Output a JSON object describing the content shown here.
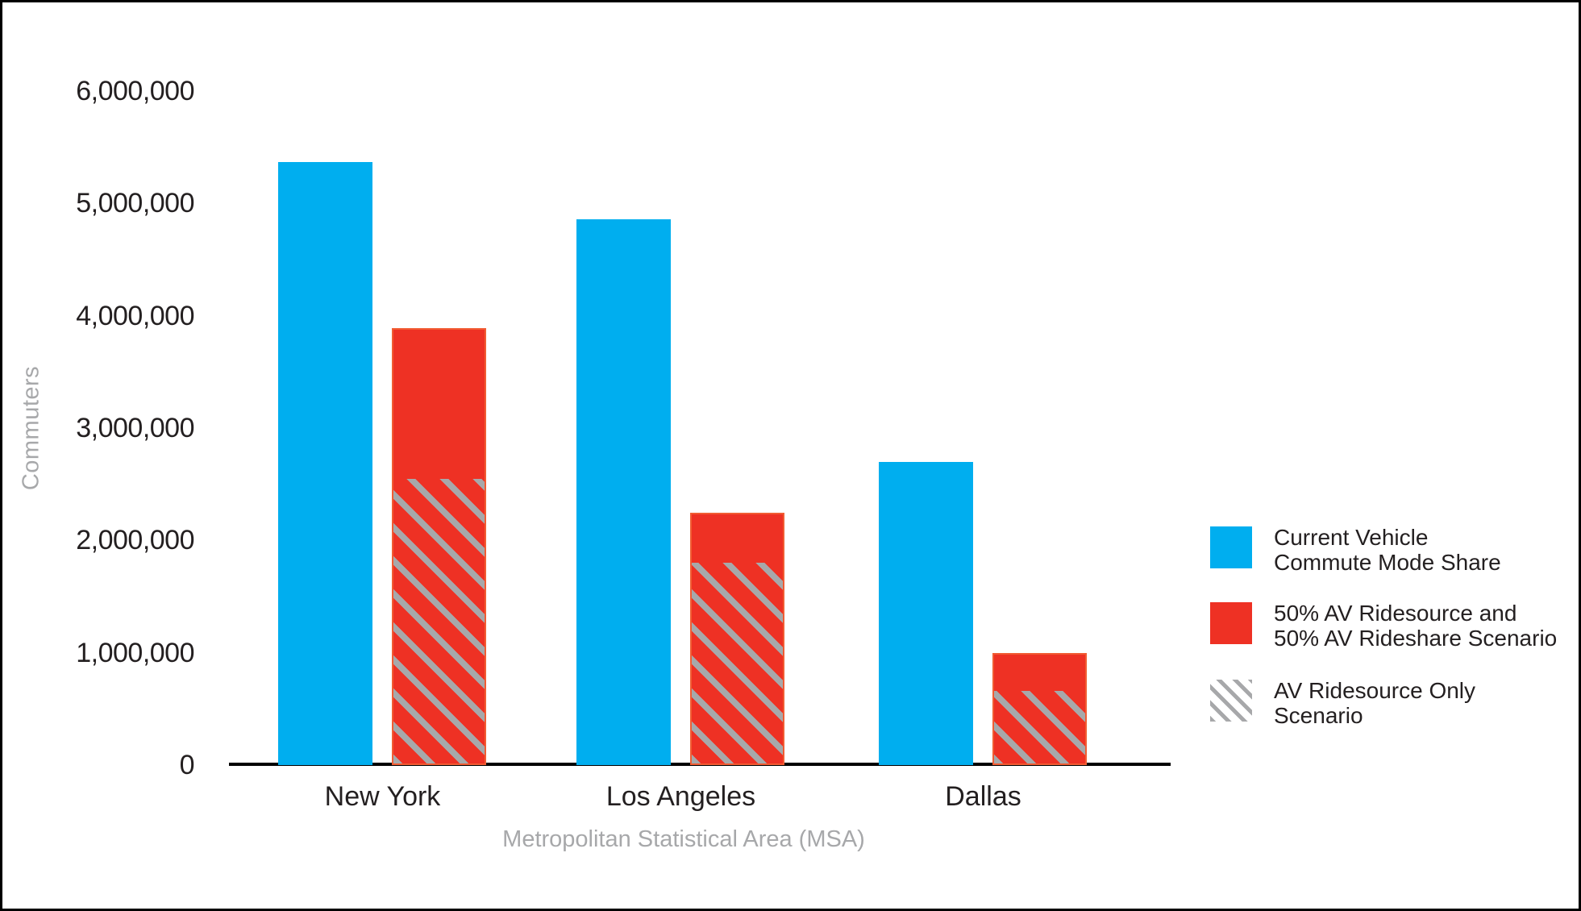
{
  "colors": {
    "bar_blue": "#00AEEF",
    "bar_red": "#EE3124",
    "bar_red_stroke": "#F4793E",
    "hatch_gray": "#A7A8AA",
    "axis_black": "#000000",
    "muted_text": "#A7A8AA",
    "text": "#231F20"
  },
  "chart_data": {
    "type": "bar",
    "xlabel": "Metropolitan Statistical Area (MSA)",
    "ylabel": "Commuters",
    "categories": [
      "New York",
      "Los Angeles",
      "Dallas"
    ],
    "series": [
      {
        "name": "Current Vehicle Commute Mode Share",
        "style": "solid",
        "color": "#00AEEF",
        "values": [
          5370000,
          4860000,
          2700000
        ]
      },
      {
        "name": "50% AV Ridesource and 50% AV Rideshare Scenario",
        "style": "solid",
        "color": "#EE3124",
        "values": [
          3890000,
          2250000,
          1000000
        ]
      },
      {
        "name": "AV Ridesource Only Scenario",
        "style": "hatch",
        "color": "#A7A8AA",
        "values": [
          2550000,
          1800000,
          660000
        ]
      }
    ],
    "ylim": [
      0,
      6000000
    ],
    "yticks": [
      {
        "label": "6,000,000",
        "value": 6000000
      },
      {
        "label": "5,000,000",
        "value": 5000000
      },
      {
        "label": "4,000,000",
        "value": 4000000
      },
      {
        "label": "3,000,000",
        "value": 3000000
      },
      {
        "label": "2,000,000",
        "value": 2000000
      },
      {
        "label": "1,000,000",
        "value": 1000000
      },
      {
        "label": "0",
        "value": 0
      }
    ],
    "grid": false,
    "legend_position": "right"
  },
  "legend": {
    "items": [
      {
        "swatch": "solid-blue",
        "color": "#00AEEF",
        "lines": [
          "Current Vehicle",
          "Commute Mode Share"
        ]
      },
      {
        "swatch": "solid-red",
        "color": "#EE3124",
        "lines": [
          "50% AV Ridesource and",
          "50% AV Rideshare Scenario"
        ]
      },
      {
        "swatch": "hatch-gray",
        "color": "#A7A8AA",
        "lines": [
          "AV Ridesource Only",
          "Scenario"
        ]
      }
    ]
  }
}
